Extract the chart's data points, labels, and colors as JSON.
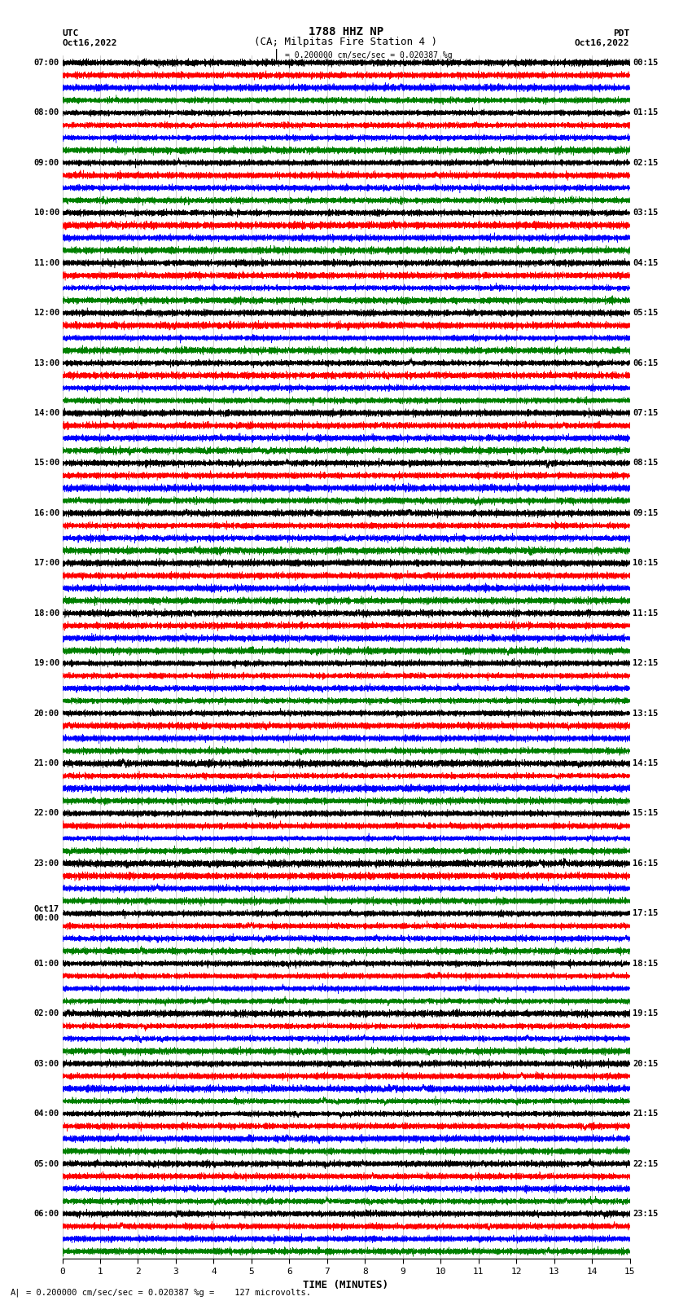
{
  "title_line1": "1788 HHZ NP",
  "title_line2": "(CA; Milpitas Fire Station 4 )",
  "left_header_top": "UTC",
  "left_header_date": "Oct16,2022",
  "right_header_top": "PDT",
  "right_header_date": "Oct16,2022",
  "scale_bar_text": "= 0.200000 cm/sec/sec = 0.020387 %g",
  "bottom_label": "TIME (MINUTES)",
  "bottom_note": "= 0.200000 cm/sec/sec = 0.020387 %g =    127 microvolts.",
  "trace_colors_cycle": [
    "black",
    "red",
    "blue",
    "green"
  ],
  "left_times": [
    "07:00",
    "08:00",
    "09:00",
    "10:00",
    "11:00",
    "12:00",
    "13:00",
    "14:00",
    "15:00",
    "16:00",
    "17:00",
    "18:00",
    "19:00",
    "20:00",
    "21:00",
    "22:00",
    "23:00",
    "Oct17\n00:00",
    "01:00",
    "02:00",
    "03:00",
    "04:00",
    "05:00",
    "06:00"
  ],
  "right_times": [
    "00:15",
    "01:15",
    "02:15",
    "03:15",
    "04:15",
    "05:15",
    "06:15",
    "07:15",
    "08:15",
    "09:15",
    "10:15",
    "11:15",
    "12:15",
    "13:15",
    "14:15",
    "15:15",
    "16:15",
    "17:15",
    "18:15",
    "19:15",
    "20:15",
    "21:15",
    "22:15",
    "23:15"
  ],
  "n_traces": 96,
  "xmin": 0,
  "xmax": 15,
  "bg_color": "white",
  "traces_per_hour": 4,
  "n_hours": 24
}
